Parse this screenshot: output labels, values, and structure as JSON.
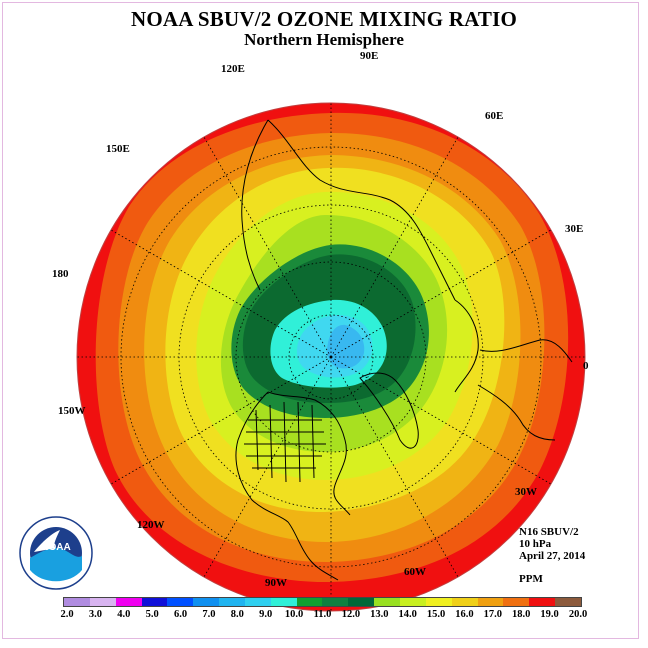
{
  "title": "NOAA SBUV/2 OZONE MIXING RATIO",
  "subtitle": "Northern Hemisphere",
  "longitudes": [
    {
      "label": "90E",
      "name": "lon-90e"
    },
    {
      "label": "120E",
      "name": "lon-120e"
    },
    {
      "label": "60E",
      "name": "lon-60e"
    },
    {
      "label": "150E",
      "name": "lon-150e"
    },
    {
      "label": "30E",
      "name": "lon-30e"
    },
    {
      "label": "180",
      "name": "lon-180"
    },
    {
      "label": "0",
      "name": "lon-0"
    },
    {
      "label": "150W",
      "name": "lon-150w"
    },
    {
      "label": "30W",
      "name": "lon-30w"
    },
    {
      "label": "120W",
      "name": "lon-120w"
    },
    {
      "label": "60W",
      "name": "lon-60w"
    },
    {
      "label": "90W",
      "name": "lon-90w"
    }
  ],
  "info": {
    "instrument": "N16 SBUV/2",
    "level": "10 hPa",
    "date": "April 27, 2014",
    "units": "PPM"
  },
  "logo_text": "NOAA",
  "legend": {
    "ticks": [
      "2.0",
      "3.0",
      "4.0",
      "5.0",
      "6.0",
      "7.0",
      "8.0",
      "9.0",
      "10.0",
      "11.0",
      "12.0",
      "13.0",
      "14.0",
      "15.0",
      "16.0",
      "17.0",
      "18.0",
      "19.0",
      "20.0"
    ],
    "colors": [
      "#b08ce0",
      "#d8b4f0",
      "#f000f0",
      "#1010d8",
      "#0050ff",
      "#1090f0",
      "#20b4f0",
      "#30d0f0",
      "#30f0d8",
      "#10a030",
      "#108040",
      "#006838",
      "#98e020",
      "#c8f020",
      "#f0f020",
      "#f0d018",
      "#f0a010",
      "#f07010",
      "#f01010",
      "#8c5a3c"
    ]
  },
  "map_colors": {
    "outer": "#f01010",
    "band18": "#f05a10",
    "band17": "#f08c10",
    "band16": "#f0b414",
    "band15": "#f0e020",
    "band14": "#d8f020",
    "band13": "#a8e020",
    "band12": "#1a8a3a",
    "band11": "#0c6a30",
    "band10": "#30f0d8",
    "core": "#40d8f0",
    "pole": "#38b8f0",
    "land": "#000000"
  }
}
